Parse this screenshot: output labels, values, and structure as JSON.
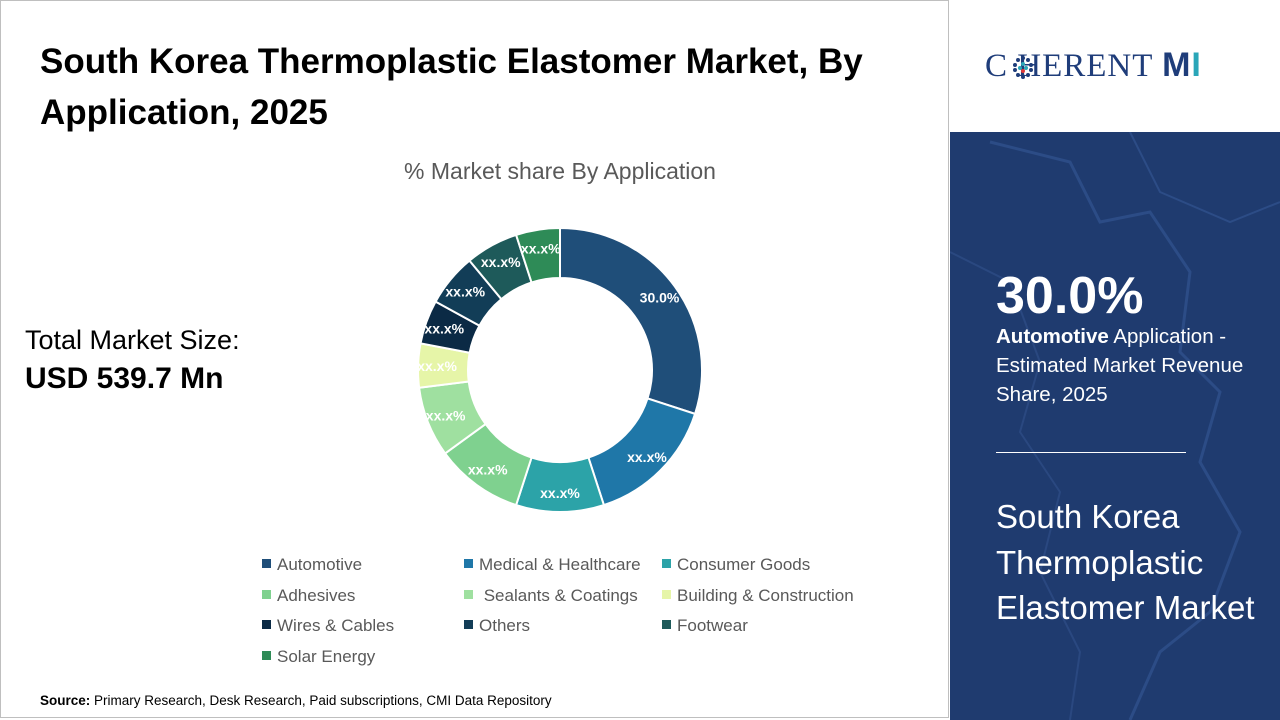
{
  "header": {
    "title": "South Korea Thermoplastic Elastomer Market, By Application, 2025"
  },
  "market_size": {
    "label": "Total Market Size:",
    "value": "USD 539.7 Mn"
  },
  "chart_data": {
    "type": "pie",
    "style": "donut",
    "title": "% Market share By Application",
    "categories": [
      "Automotive",
      "Medical & Healthcare",
      "Consumer Goods",
      "Adhesives",
      "Sealants & Coatings",
      "Building & Construction",
      "Wires & Cables",
      "Others",
      "Footwear",
      "Solar Energy"
    ],
    "values": [
      30.0,
      15.0,
      10.0,
      10.0,
      8.0,
      5.0,
      5.0,
      6.0,
      6.0,
      5.0
    ],
    "data_labels": [
      "30.0%",
      "xx.x%",
      "xx.x%",
      "xx.x%",
      "xx.x%",
      "xx.x%",
      "xx.x%",
      "xx.x%",
      "xx.x%",
      "xx.x%"
    ],
    "colors": [
      "#1f4e79",
      "#1f77a8",
      "#2ca3a8",
      "#7fd18f",
      "#9fe0a0",
      "#e6f5a8",
      "#0b2a45",
      "#123d57",
      "#1e5a5a",
      "#2e8b57"
    ],
    "legend_position": "bottom",
    "legend_labels": [
      "Automotive",
      "Medical & Healthcare",
      "Consumer Goods",
      "Adhesives",
      " Sealants & Coatings",
      "Building & Construction",
      "Wires & Cables",
      "Others",
      "Footwear",
      "Solar Energy"
    ]
  },
  "source": {
    "label": "Source:",
    "text": " Primary Research, Desk Research, Paid subscriptions, CMI Data Repository"
  },
  "logo": {
    "text": "C  HERENT",
    "mi": "M",
    "mi_i": "I"
  },
  "side_panel": {
    "stat": "30.0%",
    "stat_bold": "Automotive",
    "stat_text": " Application - Estimated Market Revenue Share, 2025",
    "title": "South Korea Thermoplastic Elastomer Market"
  },
  "colors": {
    "panel_bg": "#1f3b6f",
    "logo": "#1f3d7a"
  }
}
